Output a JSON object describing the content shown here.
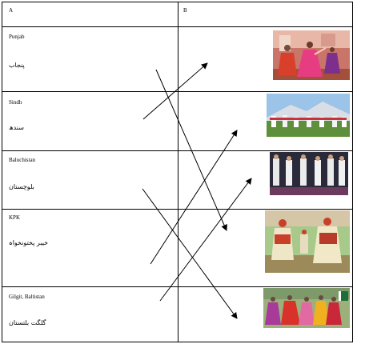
{
  "table": {
    "headers": {
      "a": "A",
      "b": "B"
    },
    "rows": [
      {
        "english": "Punjab",
        "urdu": "پنجاب",
        "photo": "punjab-dance-photo"
      },
      {
        "english": "Sindh",
        "urdu": "سندھ",
        "photo": "sindh-dance-photo"
      },
      {
        "english": "Baluchistan",
        "urdu": "بلوچستان",
        "photo": "baluchistan-dance-photo"
      },
      {
        "english": "KPK",
        "urdu": "خیبر پختونخواہ",
        "photo": "kpk-dance-photo"
      },
      {
        "english": "Gilgit, Baltistan",
        "urdu": "گلگت بلتستان",
        "photo": "gilgit-baltistan-dance-photo"
      }
    ]
  },
  "colors": {
    "border": "#000000",
    "arrow": "#000000",
    "background": "#ffffff"
  }
}
